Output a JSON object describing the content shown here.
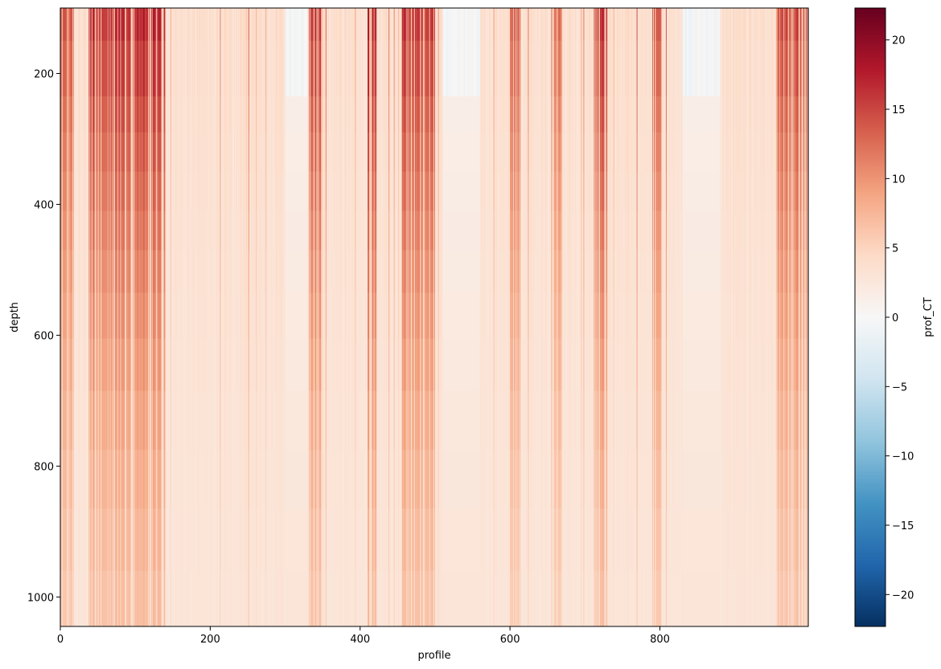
{
  "chart_data": {
    "type": "heatmap",
    "title": "",
    "xlabel": "profile",
    "ylabel": "depth",
    "colorbar_label": "prof_CT",
    "colormap": "RdBu_r",
    "colormap_stops": [
      "#053061",
      "#2166ac",
      "#4393c3",
      "#92c5de",
      "#d1e5f0",
      "#f7f7f7",
      "#fddbc7",
      "#f4a582",
      "#d6604d",
      "#b2182b",
      "#67001f"
    ],
    "xlim": [
      0,
      998
    ],
    "ylim": [
      1045,
      100
    ],
    "y_inverted": true,
    "vmin": -22.3,
    "vmax": 22.3,
    "x_ticks": [
      0,
      200,
      400,
      600,
      800
    ],
    "y_ticks": [
      200,
      400,
      600,
      800,
      1000
    ],
    "colorbar_ticks": [
      20,
      15,
      10,
      5,
      0,
      -5,
      -10,
      -15,
      -20
    ],
    "colorbar_tick_labels": [
      "20",
      "15",
      "10",
      "5",
      "0",
      "−5",
      "−10",
      "−15",
      "−20"
    ],
    "depth_levels": [
      100,
      150,
      235,
      290,
      350,
      410,
      470,
      535,
      605,
      685,
      775,
      865,
      960,
      1045
    ],
    "warm_bands": [
      {
        "start": 0,
        "end": 18,
        "surface_temp": 16
      },
      {
        "start": 38,
        "end": 140,
        "surface_temp": 19
      },
      {
        "start": 248,
        "end": 252,
        "surface_temp": 16
      },
      {
        "start": 332,
        "end": 350,
        "surface_temp": 18
      },
      {
        "start": 410,
        "end": 422,
        "surface_temp": 20
      },
      {
        "start": 455,
        "end": 500,
        "surface_temp": 18
      },
      {
        "start": 600,
        "end": 615,
        "surface_temp": 16
      },
      {
        "start": 655,
        "end": 670,
        "surface_temp": 15
      },
      {
        "start": 712,
        "end": 730,
        "surface_temp": 18
      },
      {
        "start": 790,
        "end": 802,
        "surface_temp": 16
      },
      {
        "start": 955,
        "end": 998,
        "surface_temp": 17
      }
    ],
    "cool_surface_bands": [
      {
        "start": 300,
        "end": 330
      },
      {
        "start": 510,
        "end": 560
      },
      {
        "start": 830,
        "end": 880
      }
    ]
  }
}
